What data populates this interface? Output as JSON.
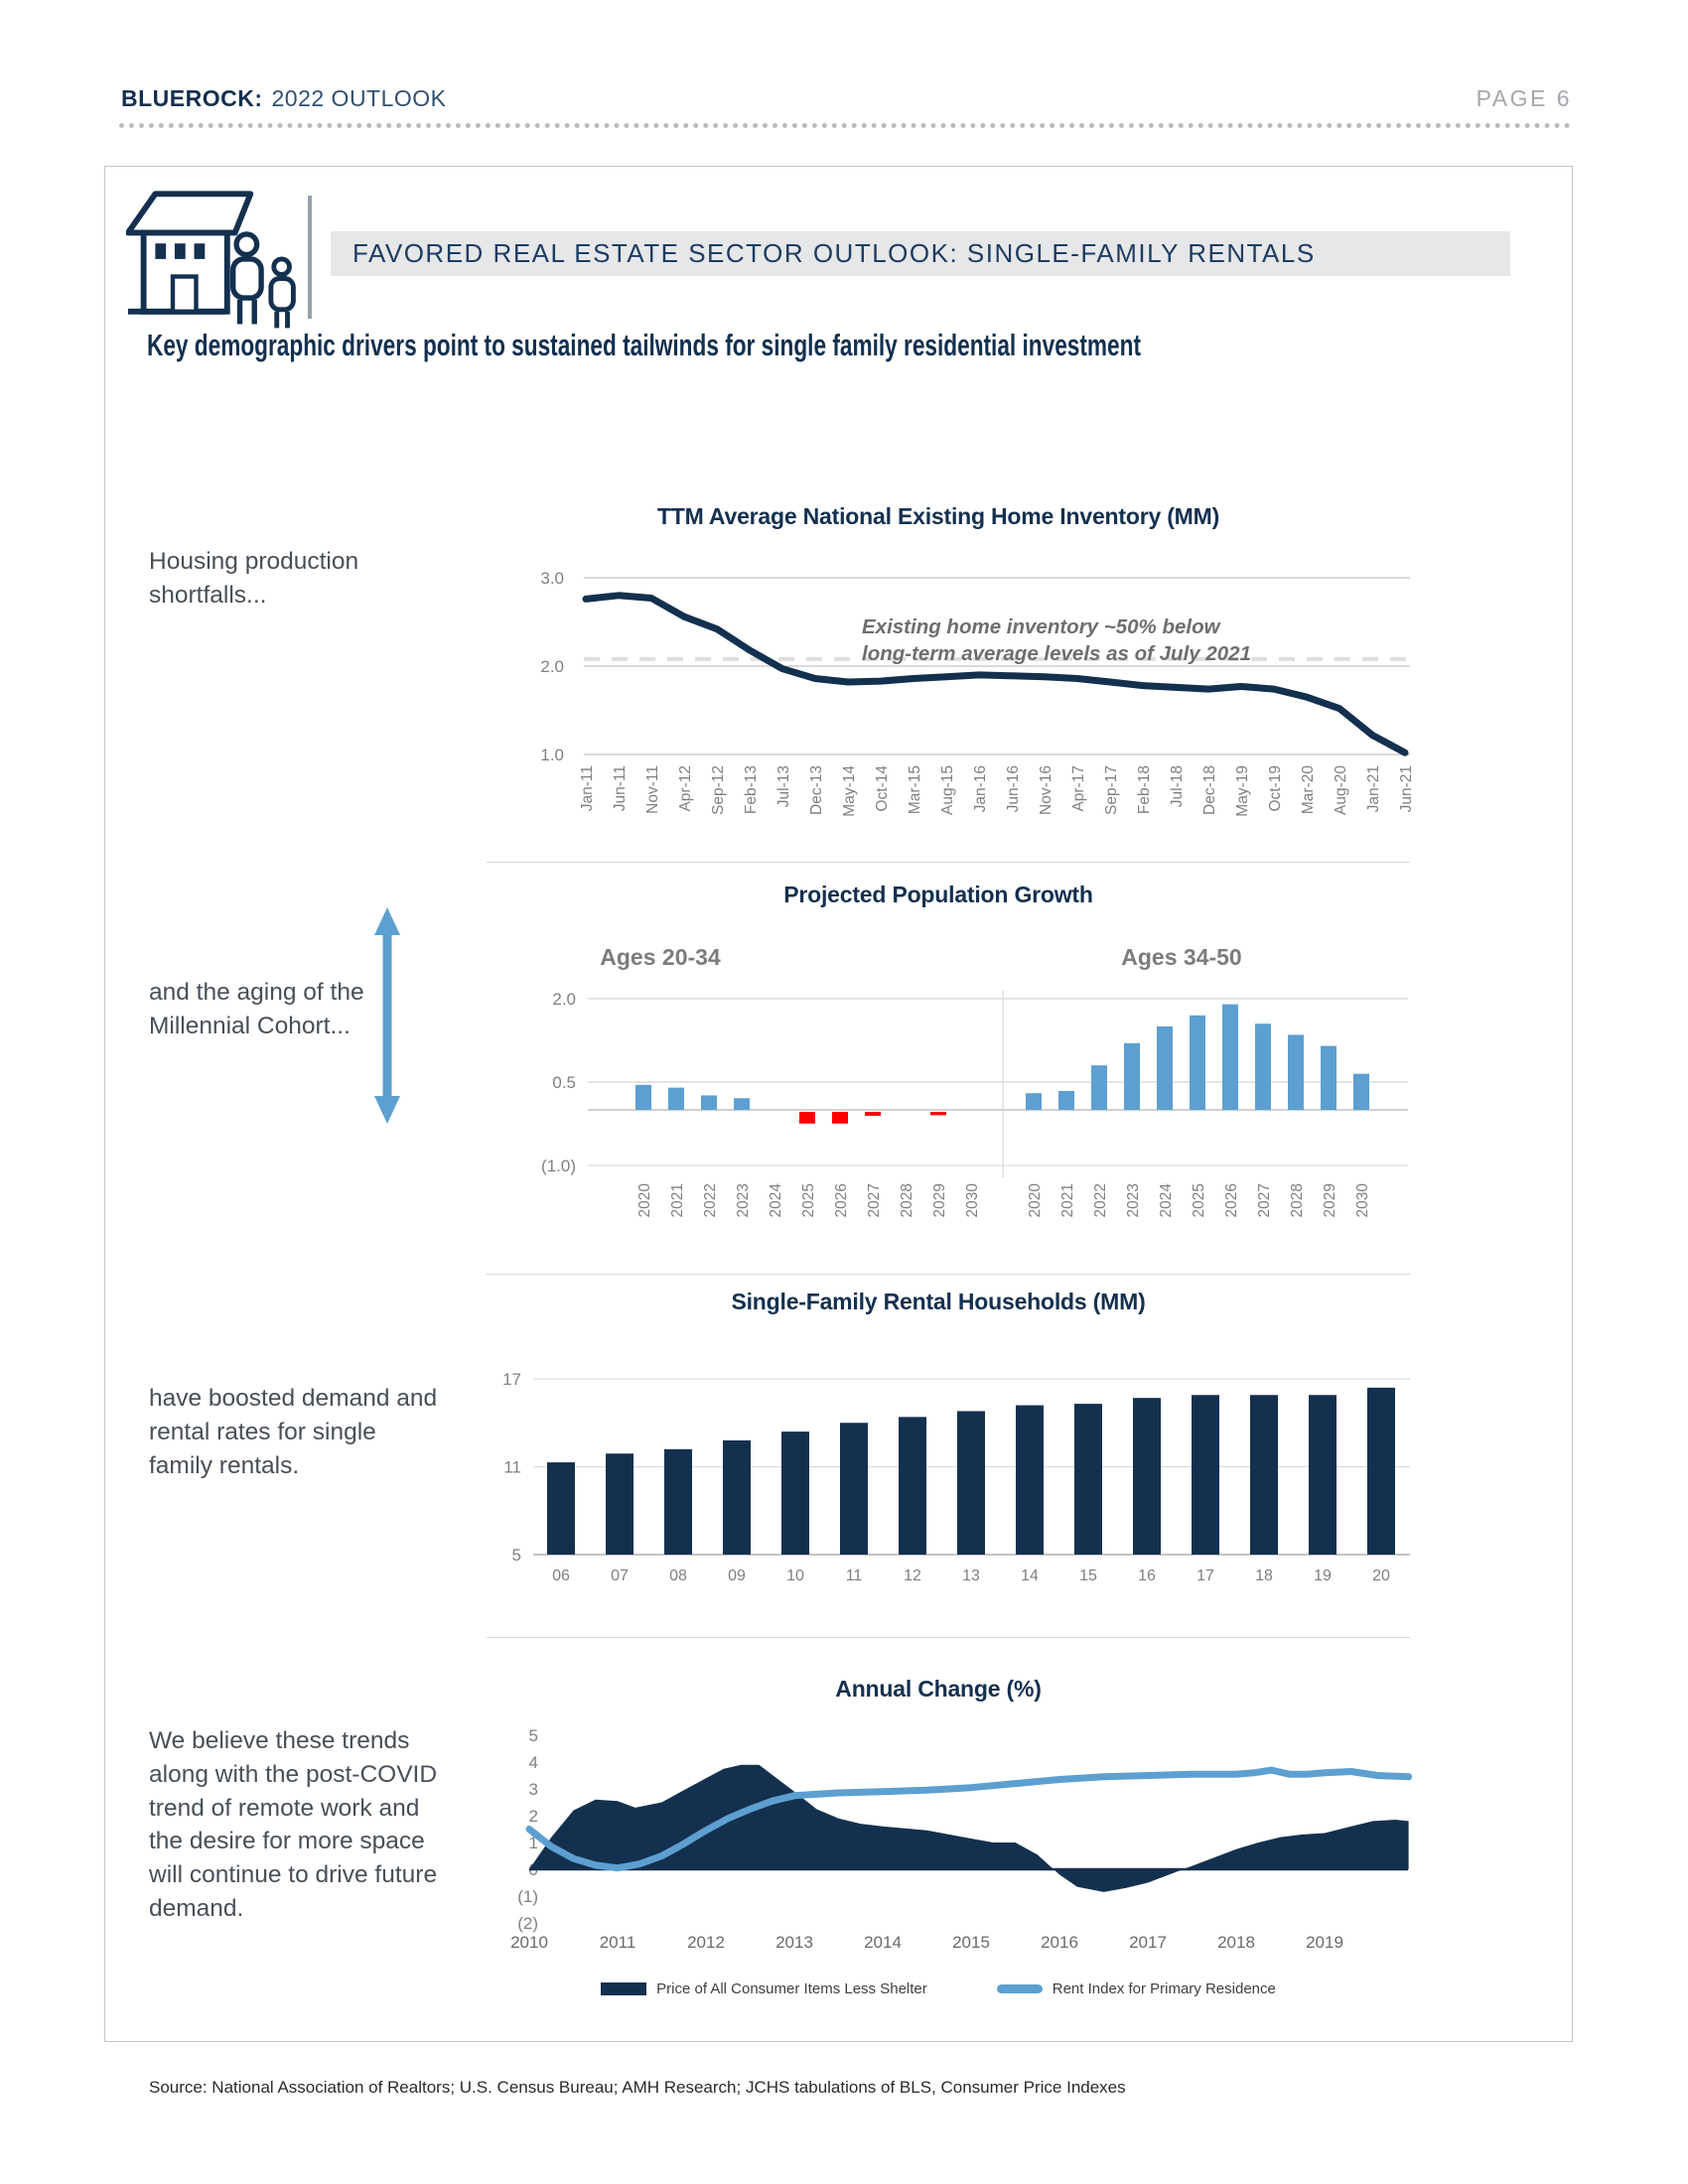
{
  "page": {
    "header": {
      "brand": "BLUEROCK:",
      "title": "2022 OUTLOOK",
      "page_label": "PAGE 6"
    },
    "banner": {
      "title": "FAVORED REAL ESTATE SECTOR OUTLOOK: SINGLE-FAMILY RENTALS"
    },
    "heading": "Key demographic drivers point to sustained tailwinds for single family residential investment",
    "side_notes": [
      "Housing production shortfalls...",
      "and the aging of the Millennial Cohort...",
      "have boosted demand and rental rates for single family rentals.",
      "We believe these trends along with the post-COVID trend of remote work and the desire for more space will continue to drive future demand."
    ],
    "source": "Source: National Association of Realtors;  U.S. Census Bureau; AMH Research; JCHS tabulations of BLS, Consumer Price Indexes"
  },
  "colors": {
    "navy": "#14304f",
    "light_blue": "#5d9fd0",
    "red": "#fe0000",
    "banner_bg": "#e6e7e8",
    "axis_gray": "#7f7f7f",
    "grid_gray": "#d4d4d4",
    "annotation_gray": "#6e6e6e"
  },
  "chart_data": [
    {
      "id": "home_inventory",
      "type": "line",
      "title": "TTM Average National Existing Home Inventory (MM)",
      "annotation_lines": [
        "Existing home inventory ~50% below",
        "long-term average levels as of July 2021"
      ],
      "ylim": [
        1.0,
        3.0
      ],
      "yticks": [
        3.0,
        2.0,
        1.0
      ],
      "reference_value": 2.08,
      "grid": true,
      "x_labels": [
        "Jan-11",
        "Jun-11",
        "Nov-11",
        "Apr-12",
        "Sep-12",
        "Feb-13",
        "Jul-13",
        "Dec-13",
        "May-14",
        "Oct-14",
        "Mar-15",
        "Aug-15",
        "Jan-16",
        "Jun-16",
        "Nov-16",
        "Apr-17",
        "Sep-17",
        "Feb-18",
        "Jul-18",
        "Dec-18",
        "May-19",
        "Oct-19",
        "Mar-20",
        "Aug-20",
        "Jan-21",
        "Jun-21"
      ],
      "values": [
        2.76,
        2.8,
        2.77,
        2.56,
        2.42,
        2.18,
        1.97,
        1.86,
        1.82,
        1.83,
        1.86,
        1.88,
        1.9,
        1.89,
        1.88,
        1.86,
        1.82,
        1.78,
        1.76,
        1.74,
        1.77,
        1.74,
        1.65,
        1.52,
        1.22,
        1.02
      ]
    },
    {
      "id": "population_growth",
      "type": "bar",
      "title": "Projected Population Growth",
      "ylim": [
        -1.0,
        2.0
      ],
      "yticks": [
        {
          "v": 2.0,
          "label": "2.0"
        },
        {
          "v": 0.5,
          "label": "0.5"
        },
        {
          "v": -1.0,
          "label": "(1.0)"
        }
      ],
      "panels": [
        {
          "subtitle": "Ages 20-34",
          "categories": [
            "2020",
            "2021",
            "2022",
            "2023",
            "2024",
            "2025",
            "2026",
            "2027",
            "2028",
            "2029",
            "2030"
          ],
          "values": [
            0.45,
            0.4,
            0.26,
            0.21,
            0.0,
            -0.21,
            -0.21,
            -0.07,
            0.0,
            -0.06,
            0.0
          ]
        },
        {
          "subtitle": "Ages 34-50",
          "categories": [
            "2020",
            "2021",
            "2022",
            "2023",
            "2024",
            "2025",
            "2026",
            "2027",
            "2028",
            "2029",
            "2030"
          ],
          "values": [
            0.3,
            0.34,
            0.8,
            1.2,
            1.5,
            1.7,
            1.9,
            1.55,
            1.35,
            1.15,
            0.65
          ]
        }
      ]
    },
    {
      "id": "sfr_households",
      "type": "bar",
      "title": "Single-Family Rental Households (MM)",
      "ylim": [
        5,
        17
      ],
      "yticks": [
        {
          "v": 17,
          "label": "17"
        },
        {
          "v": 11,
          "label": "11"
        },
        {
          "v": 5,
          "label": "5"
        }
      ],
      "categories": [
        "06",
        "07",
        "08",
        "09",
        "10",
        "11",
        "12",
        "13",
        "14",
        "15",
        "16",
        "17",
        "18",
        "19",
        "20"
      ],
      "values": [
        11.3,
        11.9,
        12.2,
        12.8,
        13.4,
        14.0,
        14.4,
        14.8,
        15.2,
        15.3,
        15.7,
        15.9,
        15.9,
        15.9,
        16.4
      ]
    },
    {
      "id": "annual_change",
      "type": "area-line",
      "title": "Annual Change (%)",
      "ylim": [
        -2,
        5
      ],
      "xlim": [
        2010,
        2020
      ],
      "yticks": [
        {
          "v": 5,
          "label": "5"
        },
        {
          "v": 4,
          "label": "4"
        },
        {
          "v": 3,
          "label": "3"
        },
        {
          "v": 2,
          "label": "2"
        },
        {
          "v": 1,
          "label": "1"
        },
        {
          "v": 0,
          "label": "0"
        },
        {
          "v": -1,
          "label": "(1)"
        },
        {
          "v": -2,
          "label": "(2)"
        }
      ],
      "x_labels": [
        "2010",
        "2011",
        "2012",
        "2013",
        "2014",
        "2015",
        "2016",
        "2017",
        "2018",
        "2019"
      ],
      "series": [
        {
          "name": "Price of All Consumer Items Less Shelter",
          "type": "area",
          "x": [
            2010.0,
            2010.25,
            2010.5,
            2010.75,
            2011.0,
            2011.2,
            2011.5,
            2011.75,
            2012.0,
            2012.2,
            2012.4,
            2012.6,
            2012.8,
            2013.0,
            2013.25,
            2013.5,
            2013.75,
            2014.0,
            2014.5,
            2015.0,
            2015.25,
            2015.5,
            2015.75,
            2016.0,
            2016.2,
            2016.5,
            2016.75,
            2017.0,
            2017.4,
            2017.6,
            2017.8,
            2018.0,
            2018.25,
            2018.5,
            2018.75,
            2019.0,
            2019.3,
            2019.55,
            2019.8,
            2019.95
          ],
          "values": [
            0.0,
            1.2,
            2.2,
            2.6,
            2.55,
            2.3,
            2.5,
            2.95,
            3.4,
            3.75,
            3.9,
            3.9,
            3.4,
            2.9,
            2.25,
            1.9,
            1.7,
            1.6,
            1.45,
            1.15,
            1.0,
            1.0,
            0.55,
            -0.2,
            -0.65,
            -0.85,
            -0.7,
            -0.5,
            0.0,
            0.25,
            0.5,
            0.75,
            1.0,
            1.2,
            1.3,
            1.35,
            1.6,
            1.8,
            1.85,
            1.8
          ]
        },
        {
          "name": "Rent Index for Primary Residence",
          "type": "line",
          "x": [
            2010.0,
            2010.25,
            2010.5,
            2010.75,
            2011.0,
            2011.25,
            2011.5,
            2011.75,
            2012.0,
            2012.25,
            2012.5,
            2012.75,
            2013.0,
            2013.5,
            2014.0,
            2014.5,
            2015.0,
            2015.5,
            2016.0,
            2016.5,
            2017.0,
            2017.5,
            2018.0,
            2018.2,
            2018.4,
            2018.6,
            2018.8,
            2019.0,
            2019.3,
            2019.6,
            2019.95
          ],
          "values": [
            1.5,
            0.85,
            0.4,
            0.15,
            0.05,
            0.2,
            0.5,
            0.95,
            1.45,
            1.9,
            2.25,
            2.55,
            2.75,
            2.85,
            2.9,
            2.95,
            3.05,
            3.2,
            3.35,
            3.45,
            3.5,
            3.55,
            3.55,
            3.6,
            3.7,
            3.55,
            3.55,
            3.6,
            3.65,
            3.5,
            3.45
          ]
        }
      ]
    }
  ]
}
